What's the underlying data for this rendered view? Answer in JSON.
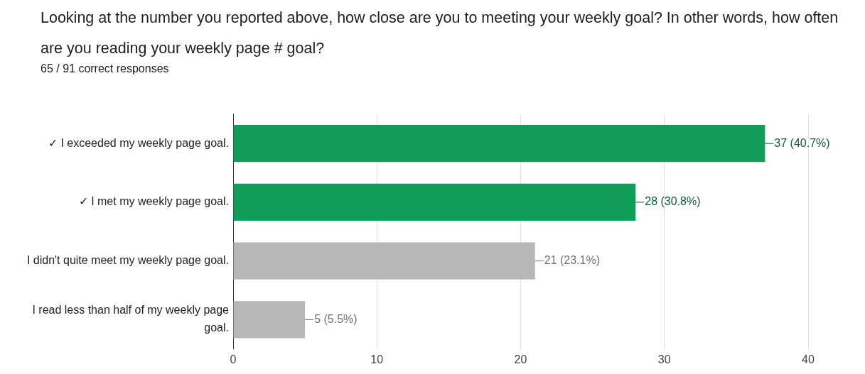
{
  "chart_data": {
    "type": "bar",
    "orientation": "horizontal",
    "title": "Looking at the number you reported above, how close are you to meeting your weekly goal? In other words, how often are you reading your weekly page # goal?",
    "subtitle": "65 / 91 correct responses",
    "categories": [
      "✓ I exceeded my weekly page goal.",
      "✓ I met my weekly page goal.",
      "I didn't quite meet my weekly page goal.",
      "I read less than half of my weekly page goal."
    ],
    "values": [
      37,
      28,
      21,
      5
    ],
    "colors": [
      "#0f9d58",
      "#0f9d58",
      "#b7b7b7",
      "#b7b7b7"
    ],
    "value_labels": [
      "37 (40.7%)",
      "28 (30.8%)",
      "21 (23.1%)",
      "5 (5.5%)"
    ],
    "xlim": [
      0,
      40
    ],
    "xticks": [
      0,
      10,
      20,
      30,
      40
    ],
    "grid": "x",
    "legend": false
  }
}
